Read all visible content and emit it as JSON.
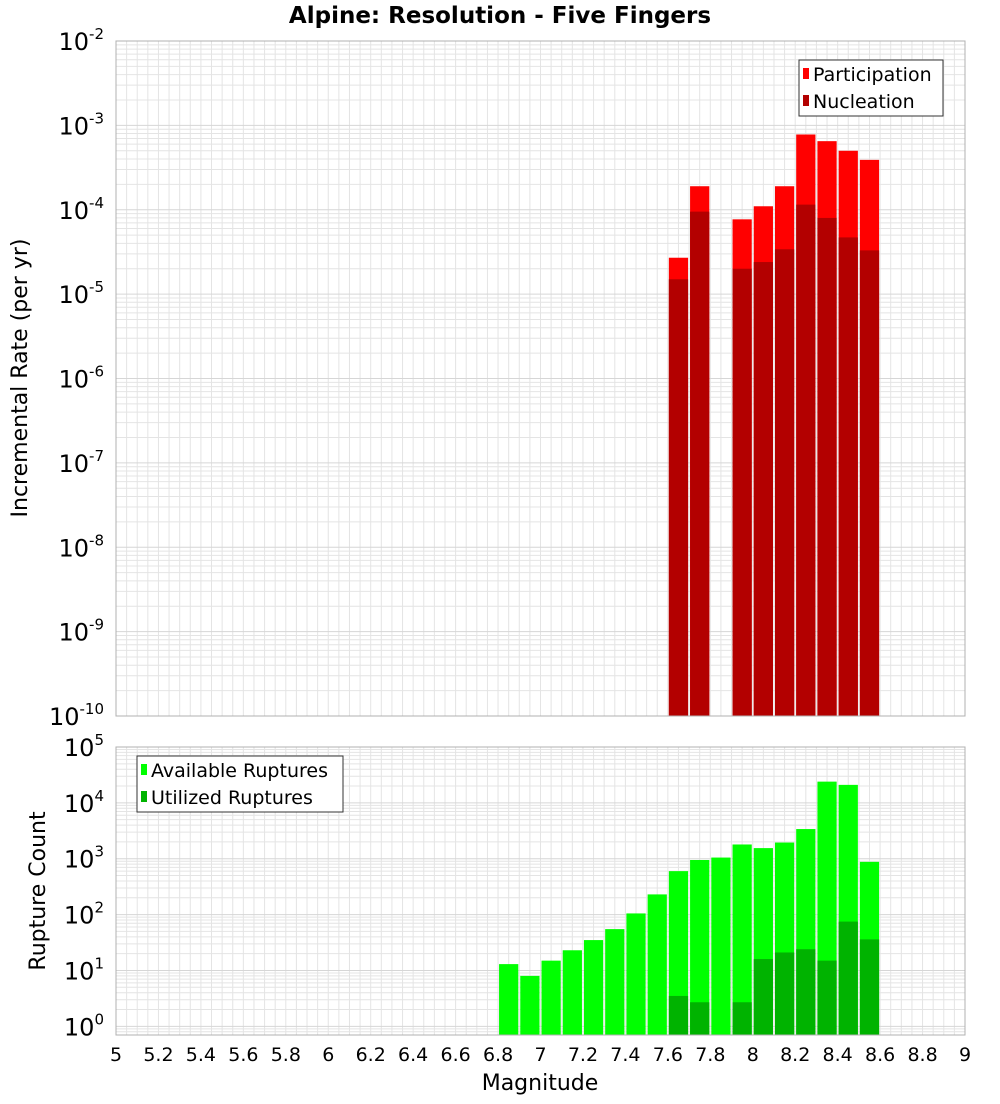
{
  "title": "Alpine: Resolution - Five Fingers",
  "xlabel": "Magnitude",
  "x_ticks": [
    "5",
    "5.2",
    "5.4",
    "5.6",
    "5.8",
    "6",
    "6.2",
    "6.4",
    "6.6",
    "6.8",
    "7",
    "7.2",
    "7.4",
    "7.6",
    "7.8",
    "8",
    "8.2",
    "8.4",
    "8.6",
    "8.8",
    "9"
  ],
  "colors": {
    "participation": "#ff0000",
    "nucleation": "#b30000",
    "available": "#00ff00",
    "utilized": "#00b300",
    "grid": "#e4e4e4",
    "frame": "#b0b0b0"
  },
  "chart_data": [
    {
      "type": "bar",
      "title": "Alpine: Resolution - Five Fingers",
      "xlabel": "Magnitude",
      "ylabel": "Incremental Rate (per yr)",
      "xlim": [
        5,
        9
      ],
      "ylim": [
        1e-10,
        0.01
      ],
      "yscale": "log",
      "grid": true,
      "legend_position": "top-right",
      "bin_width": 0.1,
      "x": [
        7.65,
        7.75,
        7.95,
        8.05,
        8.15,
        8.25,
        8.35,
        8.45,
        8.55
      ],
      "y_ticks": [
        {
          "base": "10",
          "exp": "-10"
        },
        {
          "base": "10",
          "exp": "-9"
        },
        {
          "base": "10",
          "exp": "-8"
        },
        {
          "base": "10",
          "exp": "-7"
        },
        {
          "base": "10",
          "exp": "-6"
        },
        {
          "base": "10",
          "exp": "-5"
        },
        {
          "base": "10",
          "exp": "-4"
        },
        {
          "base": "10",
          "exp": "-3"
        },
        {
          "base": "10",
          "exp": "-2"
        }
      ],
      "series": [
        {
          "name": "Participation",
          "values": [
            2.7e-05,
            0.00019,
            7.7e-05,
            0.00011,
            0.00019,
            0.00078,
            0.00065,
            0.0005,
            0.00039
          ]
        },
        {
          "name": "Nucleation",
          "values": [
            1.5e-05,
            9.5e-05,
            2e-05,
            2.4e-05,
            3.4e-05,
            0.000115,
            8e-05,
            4.7e-05,
            3.3e-05
          ]
        }
      ]
    },
    {
      "type": "bar",
      "xlabel": "Magnitude",
      "ylabel": "Rupture Count",
      "xlim": [
        5,
        9
      ],
      "ylim": [
        0.7,
        100000.0
      ],
      "yscale": "log",
      "grid": true,
      "legend_position": "top-left",
      "bin_width": 0.1,
      "x": [
        6.85,
        6.95,
        7.05,
        7.15,
        7.25,
        7.35,
        7.45,
        7.55,
        7.65,
        7.75,
        7.85,
        7.95,
        8.05,
        8.15,
        8.25,
        8.35,
        8.45,
        8.55
      ],
      "y_ticks": [
        {
          "base": "10",
          "exp": "0"
        },
        {
          "base": "10",
          "exp": "1"
        },
        {
          "base": "10",
          "exp": "2"
        },
        {
          "base": "10",
          "exp": "3"
        },
        {
          "base": "10",
          "exp": "4"
        },
        {
          "base": "10",
          "exp": "5"
        }
      ],
      "series": [
        {
          "name": "Available Ruptures",
          "values": [
            13,
            8,
            15,
            23,
            35,
            55,
            105,
            230,
            600,
            950,
            1050,
            1800,
            1550,
            1950,
            3400,
            24000,
            21000,
            880
          ]
        },
        {
          "name": "Utilized Ruptures",
          "values": [
            null,
            null,
            null,
            null,
            null,
            null,
            null,
            null,
            3.5,
            2.7,
            null,
            2.7,
            16,
            21,
            24,
            15,
            75,
            36
          ]
        }
      ]
    }
  ]
}
